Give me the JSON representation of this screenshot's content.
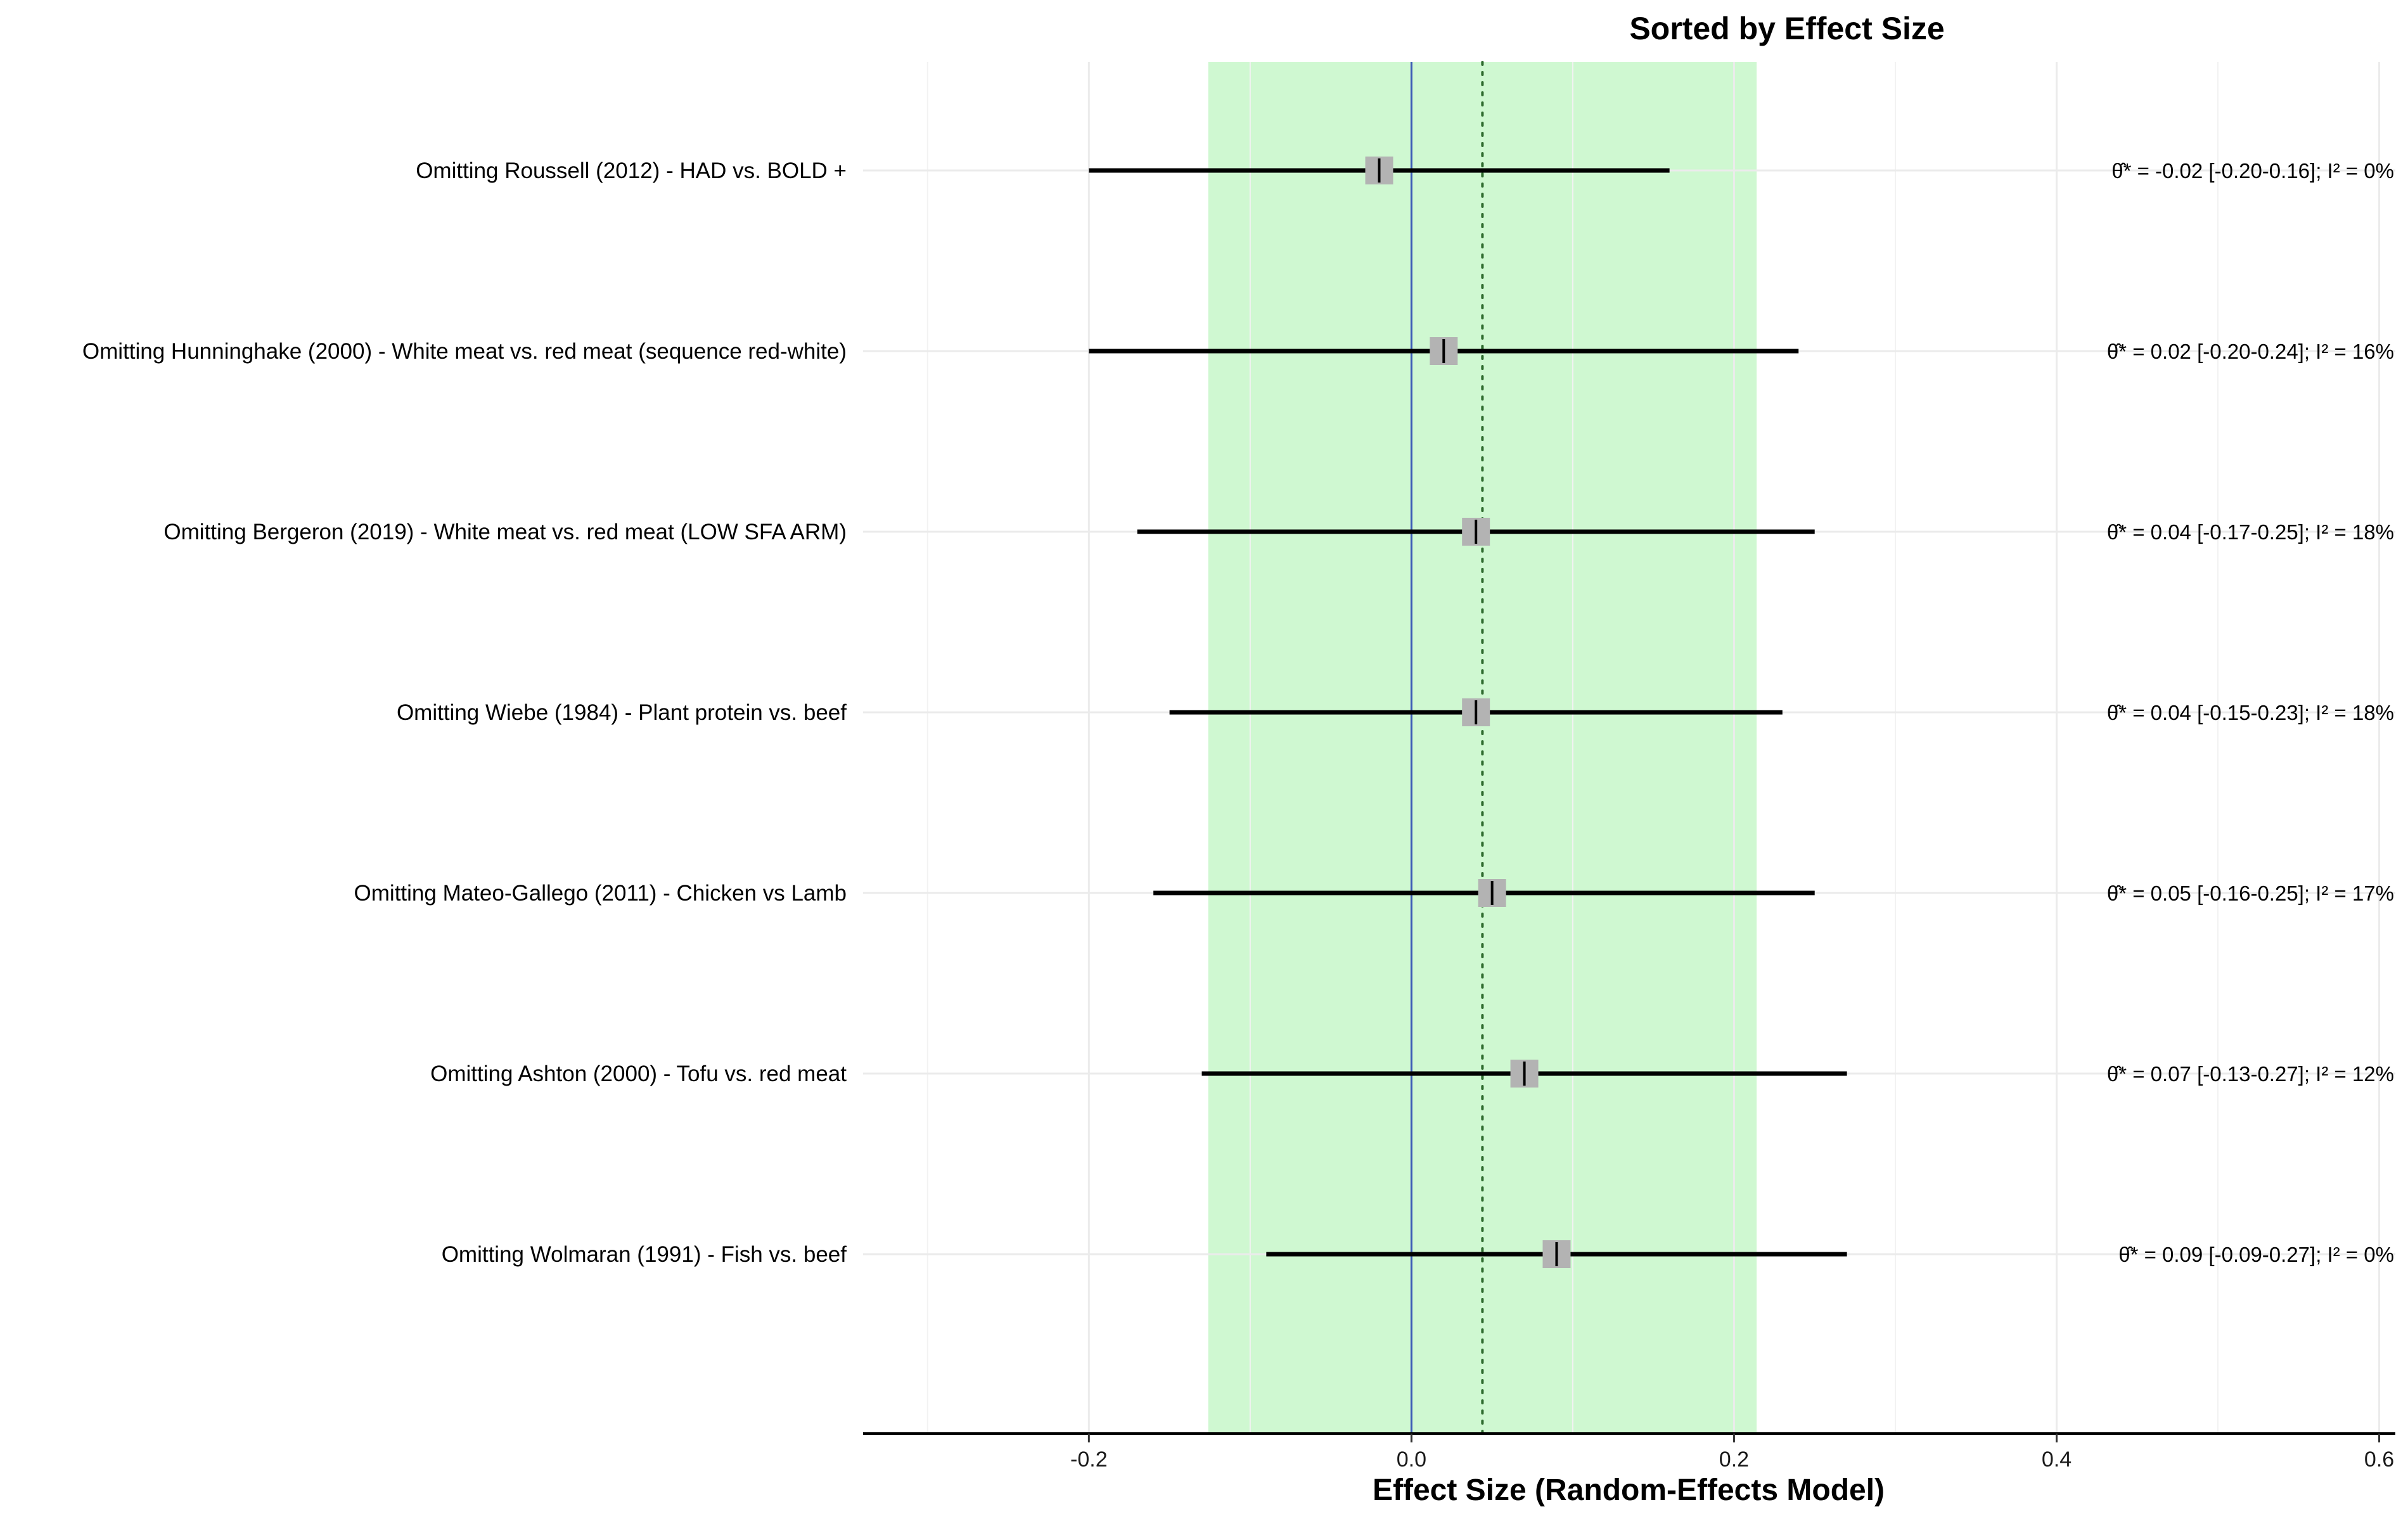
{
  "chart_data": {
    "type": "forest",
    "title": "Sorted by Effect Size",
    "xlabel": "Effect Size (Random-Effects Model)",
    "xlim": [
      -0.34,
      0.61
    ],
    "x_ticks": [
      -0.2,
      0.0,
      0.2,
      0.4,
      0.6
    ],
    "x_tick_labels": [
      "-0.2",
      "0.0",
      "0.2",
      "0.4",
      "0.6"
    ],
    "x_minor_grid": [
      -0.3,
      -0.1,
      0.1,
      0.3,
      0.5
    ],
    "grid": true,
    "reference_line": 0,
    "pooled_estimate": 0.044,
    "prediction_band": [
      -0.126,
      0.214
    ],
    "colors": {
      "band": "#cff8d1",
      "reference_line": "#3b5bb5",
      "pooled_line": "#2e6b2e",
      "ci_line": "#000000",
      "point_marker": "#b3b3b3",
      "grid": "#ebebeb"
    },
    "rows": [
      {
        "label": "Omitting Roussell (2012) - HAD vs. BOLD +",
        "estimate": -0.02,
        "lower": -0.2,
        "upper": 0.16,
        "annotation": "θ̂* = -0.02 [-0.20-0.16]; I² =  0%"
      },
      {
        "label": "Omitting Hunninghake (2000) - White meat vs. red meat (sequence red-white)",
        "estimate": 0.02,
        "lower": -0.2,
        "upper": 0.24,
        "annotation": "θ̂* =  0.02 [-0.20-0.24]; I² = 16%"
      },
      {
        "label": "Omitting Bergeron (2019) - White meat vs. red meat   (LOW SFA ARM)",
        "estimate": 0.04,
        "lower": -0.17,
        "upper": 0.25,
        "annotation": "θ̂* =  0.04 [-0.17-0.25]; I² = 18%"
      },
      {
        "label": "Omitting Wiebe (1984) - Plant protein vs. beef",
        "estimate": 0.04,
        "lower": -0.15,
        "upper": 0.23,
        "annotation": "θ̂* =  0.04 [-0.15-0.23]; I² = 18%"
      },
      {
        "label": "Omitting Mateo-Gallego (2011) - Chicken vs Lamb",
        "estimate": 0.05,
        "lower": -0.16,
        "upper": 0.25,
        "annotation": "θ̂* =  0.05 [-0.16-0.25]; I² = 17%"
      },
      {
        "label": "Omitting Ashton (2000) - Tofu vs. red meat",
        "estimate": 0.07,
        "lower": -0.13,
        "upper": 0.27,
        "annotation": "θ̂* =  0.07 [-0.13-0.27]; I² = 12%"
      },
      {
        "label": "Omitting Wolmaran (1991) - Fish vs. beef",
        "estimate": 0.09,
        "lower": -0.09,
        "upper": 0.27,
        "annotation": "θ̂* =  0.09 [-0.09-0.27]; I² =  0%"
      }
    ]
  }
}
